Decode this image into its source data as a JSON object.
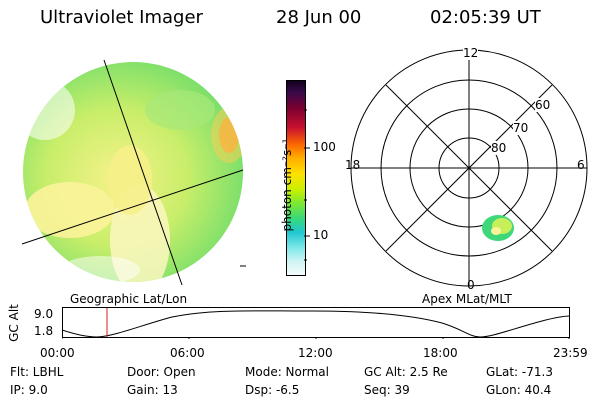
{
  "header": {
    "title": "Ultraviolet Imager",
    "date": "28 Jun 00",
    "time": "02:05:39 UT"
  },
  "imager": {
    "caption": "Geographic Lat/Lon"
  },
  "colorbar": {
    "unit": "photon cm⁻²s⁻¹",
    "ticks": [
      "100",
      "10"
    ]
  },
  "polar": {
    "caption": "Apex MLat/MLT",
    "mlt_labels": {
      "top": "12",
      "left": "18",
      "right": "6",
      "bottom": "0"
    },
    "lat_labels": [
      "60",
      "70",
      "80"
    ]
  },
  "altitude_plot": {
    "ylabel": "GC Alt",
    "yticks": [
      "9.0",
      "1.8"
    ],
    "xticks": [
      "00:00",
      "06:00",
      "12:00",
      "18:00",
      "23:59"
    ],
    "marker_time": "02:05"
  },
  "info": {
    "flt": "Flt: LBHL",
    "ip": "IP:  9.0",
    "door": "Door: Open",
    "gain": "Gain: 13",
    "mode": "Mode: Normal",
    "dsp": "Dsp:   -6.5",
    "gcalt": "GC Alt: 2.5 Re",
    "seq": "Seq: 39",
    "glat": "GLat: -71.3",
    "glon": "GLon:  40.4"
  },
  "colors": {
    "background": "#ffffff",
    "marker": "#d02020"
  }
}
